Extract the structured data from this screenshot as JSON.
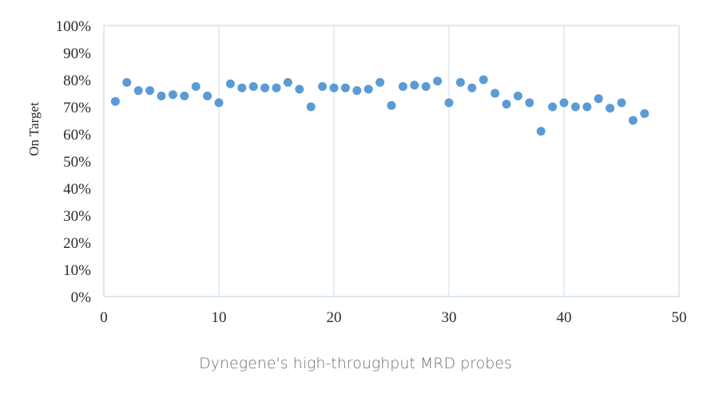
{
  "chart_data": {
    "type": "scatter",
    "caption": "Dynegene's high-throughput MRD probes",
    "ylabel": "On Target",
    "xlim": [
      0,
      50
    ],
    "ylim": [
      0,
      100
    ],
    "x_ticks": [
      "0",
      "10",
      "20",
      "30",
      "40",
      "50"
    ],
    "y_ticks": [
      "0%",
      "10%",
      "20%",
      "30%",
      "40%",
      "50%",
      "60%",
      "70%",
      "80%",
      "90%",
      "100%"
    ],
    "grid": "vertical",
    "marker_color": "#5b9bd5",
    "x": [
      1,
      2,
      3,
      4,
      5,
      6,
      7,
      8,
      9,
      10,
      11,
      12,
      13,
      14,
      15,
      16,
      17,
      18,
      19,
      20,
      21,
      22,
      23,
      24,
      25,
      26,
      27,
      28,
      29,
      30,
      31,
      32,
      33,
      34,
      35,
      36,
      37,
      38,
      39,
      40,
      41,
      42,
      43,
      44,
      45,
      46,
      47
    ],
    "y": [
      72,
      79,
      76,
      76,
      74,
      74.5,
      74,
      77.5,
      74,
      71.5,
      78.5,
      77,
      77.5,
      77,
      77,
      79,
      76.5,
      70,
      77.5,
      77,
      77,
      76,
      76.5,
      79,
      70.5,
      77.5,
      78,
      77.5,
      79.5,
      71.5,
      79,
      77,
      80,
      75,
      71,
      74,
      71.5,
      61,
      70,
      71.5,
      70,
      70,
      73,
      69.5,
      71.5,
      65,
      67.5
    ]
  }
}
